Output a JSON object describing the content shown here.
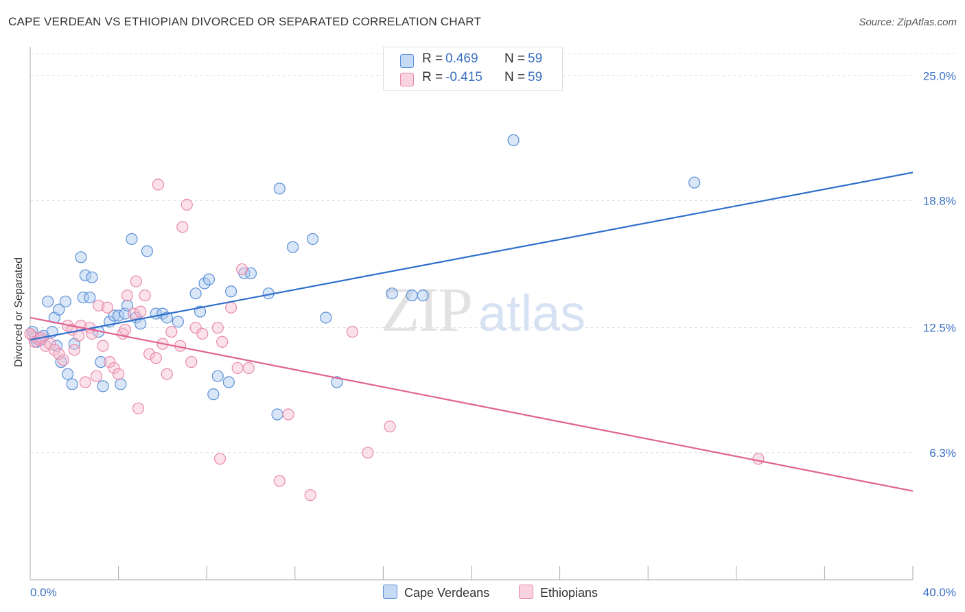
{
  "title": "CAPE VERDEAN VS ETHIOPIAN DIVORCED OR SEPARATED CORRELATION CHART",
  "source": "Source: ZipAtlas.com",
  "watermark": {
    "zip": "ZIP",
    "atlas": "atlas"
  },
  "legend_top": [
    {
      "r_label": "R =",
      "r_value": "0.469",
      "n_label": "N =",
      "n_value": "59"
    },
    {
      "r_label": "R =",
      "r_value": "-0.415",
      "n_label": "N =",
      "n_value": "59"
    }
  ],
  "colors": {
    "blue_fill": "#a8c8f0",
    "blue_stroke": "#5b8fd6",
    "blue_line": "#2e6fcc",
    "pink_fill": "#f7bcd0",
    "pink_stroke": "#e889aa",
    "pink_line": "#e0628f",
    "axis_text": "#3a6fc4",
    "grid": "#dddddd"
  },
  "chart_data": {
    "type": "scatter",
    "title": "CAPE VERDEAN VS ETHIOPIAN DIVORCED OR SEPARATED CORRELATION CHART",
    "xlabel": "",
    "ylabel": "Divorced or Separated",
    "xlim": [
      0,
      40
    ],
    "ylim": [
      0,
      26.1
    ],
    "x_tick_labels": [
      {
        "value": 0,
        "label": "0.0%"
      },
      {
        "value": 40,
        "label": "40.0%"
      }
    ],
    "y_tick_labels": [
      {
        "value": 6.3,
        "label": "6.3%"
      },
      {
        "value": 12.5,
        "label": "12.5%"
      },
      {
        "value": 18.8,
        "label": "18.8%"
      },
      {
        "value": 25.0,
        "label": "25.0%"
      }
    ],
    "grid": "horizontal-dashed",
    "legend_position": "bottom",
    "series": [
      {
        "name": "Cape Verdeans",
        "color": "#a8c8f0",
        "trend": {
          "x0": 0,
          "y0": 11.9,
          "x1": 40,
          "y1": 20.2
        },
        "points": [
          [
            0.1,
            12.3
          ],
          [
            0.2,
            12.0
          ],
          [
            0.3,
            11.8
          ],
          [
            0.5,
            11.9
          ],
          [
            0.6,
            12.1
          ],
          [
            0.8,
            13.8
          ],
          [
            1.0,
            12.3
          ],
          [
            1.1,
            13.0
          ],
          [
            1.2,
            11.6
          ],
          [
            1.3,
            13.4
          ],
          [
            1.4,
            10.8
          ],
          [
            1.6,
            13.8
          ],
          [
            1.7,
            10.2
          ],
          [
            1.9,
            9.7
          ],
          [
            2.0,
            11.7
          ],
          [
            2.3,
            16.0
          ],
          [
            2.4,
            14.0
          ],
          [
            2.5,
            15.1
          ],
          [
            2.7,
            14.0
          ],
          [
            2.8,
            15.0
          ],
          [
            3.1,
            12.3
          ],
          [
            3.2,
            10.8
          ],
          [
            3.3,
            9.6
          ],
          [
            3.6,
            12.8
          ],
          [
            3.8,
            13.1
          ],
          [
            4.0,
            13.1
          ],
          [
            4.1,
            9.7
          ],
          [
            4.3,
            13.2
          ],
          [
            4.4,
            13.6
          ],
          [
            4.6,
            16.9
          ],
          [
            4.8,
            13.0
          ],
          [
            5.0,
            12.7
          ],
          [
            5.3,
            16.3
          ],
          [
            5.7,
            13.2
          ],
          [
            6.0,
            13.2
          ],
          [
            6.2,
            13.0
          ],
          [
            6.7,
            12.8
          ],
          [
            7.5,
            14.2
          ],
          [
            7.7,
            13.3
          ],
          [
            7.9,
            14.7
          ],
          [
            8.1,
            14.9
          ],
          [
            8.3,
            9.2
          ],
          [
            8.5,
            10.1
          ],
          [
            9.0,
            9.8
          ],
          [
            9.1,
            14.3
          ],
          [
            9.7,
            15.2
          ],
          [
            10.0,
            15.2
          ],
          [
            10.8,
            14.2
          ],
          [
            11.2,
            8.2
          ],
          [
            11.3,
            19.4
          ],
          [
            11.9,
            16.5
          ],
          [
            12.8,
            16.9
          ],
          [
            13.4,
            13.0
          ],
          [
            13.9,
            9.8
          ],
          [
            16.4,
            14.2
          ],
          [
            17.3,
            14.1
          ],
          [
            17.8,
            14.1
          ],
          [
            21.9,
            21.8
          ],
          [
            30.1,
            19.7
          ]
        ]
      },
      {
        "name": "Ethiopians",
        "color": "#f7bcd0",
        "trend": {
          "x0": 0,
          "y0": 13.0,
          "x1": 40,
          "y1": 4.4
        },
        "points": [
          [
            0.1,
            12.1
          ],
          [
            0.2,
            11.8
          ],
          [
            0.4,
            11.9
          ],
          [
            0.5,
            12.0
          ],
          [
            0.7,
            11.6
          ],
          [
            0.9,
            11.7
          ],
          [
            1.1,
            11.4
          ],
          [
            1.3,
            11.2
          ],
          [
            1.5,
            10.9
          ],
          [
            1.7,
            12.6
          ],
          [
            1.9,
            12.4
          ],
          [
            2.0,
            11.4
          ],
          [
            2.2,
            12.1
          ],
          [
            2.3,
            12.6
          ],
          [
            2.5,
            9.8
          ],
          [
            2.7,
            12.5
          ],
          [
            2.8,
            12.2
          ],
          [
            3.0,
            10.1
          ],
          [
            3.1,
            13.6
          ],
          [
            3.3,
            11.6
          ],
          [
            3.5,
            13.5
          ],
          [
            3.6,
            10.8
          ],
          [
            3.8,
            10.5
          ],
          [
            4.0,
            10.2
          ],
          [
            4.2,
            12.2
          ],
          [
            4.3,
            12.4
          ],
          [
            4.4,
            14.1
          ],
          [
            4.7,
            13.2
          ],
          [
            4.8,
            14.8
          ],
          [
            4.9,
            8.5
          ],
          [
            5.0,
            13.3
          ],
          [
            5.2,
            14.1
          ],
          [
            5.4,
            11.2
          ],
          [
            5.7,
            11.0
          ],
          [
            5.8,
            19.6
          ],
          [
            6.0,
            11.7
          ],
          [
            6.2,
            10.2
          ],
          [
            6.4,
            12.3
          ],
          [
            6.8,
            11.6
          ],
          [
            6.9,
            17.5
          ],
          [
            7.1,
            18.6
          ],
          [
            7.3,
            10.8
          ],
          [
            7.5,
            12.5
          ],
          [
            7.8,
            12.2
          ],
          [
            8.5,
            12.5
          ],
          [
            8.6,
            6.0
          ],
          [
            8.7,
            11.8
          ],
          [
            9.1,
            13.5
          ],
          [
            9.4,
            10.5
          ],
          [
            9.6,
            15.4
          ],
          [
            9.9,
            10.5
          ],
          [
            11.3,
            4.9
          ],
          [
            11.7,
            8.2
          ],
          [
            12.7,
            4.2
          ],
          [
            14.6,
            12.3
          ],
          [
            15.3,
            6.3
          ],
          [
            16.3,
            7.6
          ],
          [
            33.0,
            6.0
          ],
          [
            0.0,
            12.2
          ]
        ]
      }
    ]
  },
  "legend_bottom": [
    {
      "label": "Cape Verdeans"
    },
    {
      "label": "Ethiopians"
    }
  ]
}
